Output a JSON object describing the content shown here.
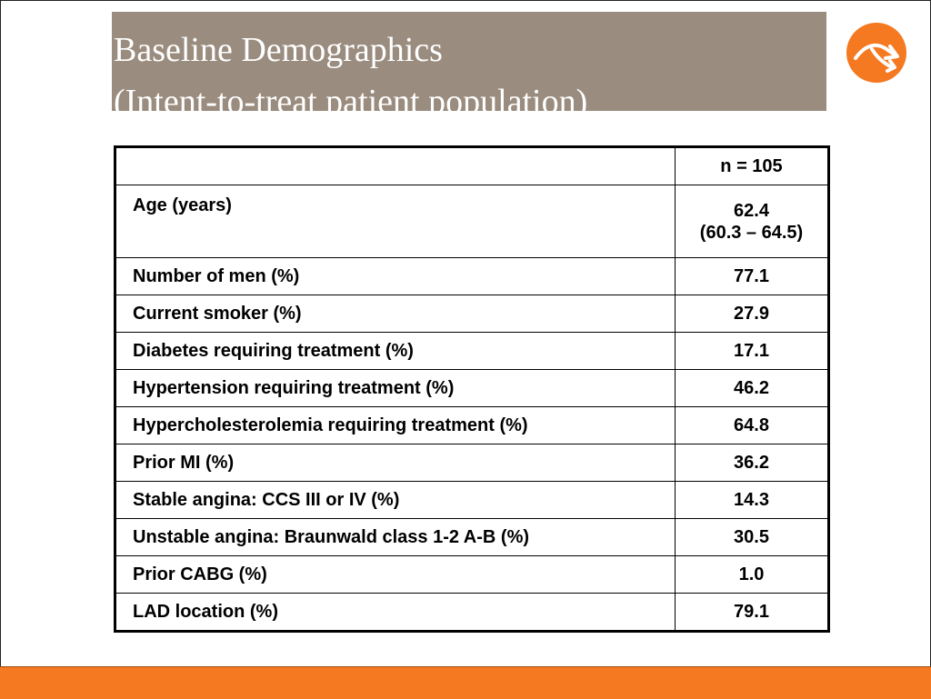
{
  "title": {
    "line1": "Baseline Demographics",
    "line2": "(Intent-to-treat patient population)"
  },
  "colors": {
    "title_bg": "#9a8c7e",
    "accent_orange": "#f47920"
  },
  "logo": {
    "icon": "forked-arrow-logo-icon"
  },
  "table": {
    "header": {
      "label": "",
      "value": "n = 105"
    },
    "rows": [
      {
        "label": "Age (years)",
        "value": "62.4",
        "value_sub": "(60.3 – 64.5)"
      },
      {
        "label": "Number of men (%)",
        "value": "77.1"
      },
      {
        "label": "Current smoker (%)",
        "value": "27.9"
      },
      {
        "label": "Diabetes requiring treatment (%)",
        "value": "17.1"
      },
      {
        "label": "Hypertension requiring treatment (%)",
        "value": "46.2"
      },
      {
        "label": "Hypercholesterolemia requiring treatment (%)",
        "value": "64.8"
      },
      {
        "label": "Prior MI (%)",
        "value": "36.2"
      },
      {
        "label": "Stable angina: CCS III or IV (%)",
        "value": "14.3"
      },
      {
        "label": "Unstable angina: Braunwald class 1-2 A-B (%)",
        "value": "30.5"
      },
      {
        "label": "Prior CABG (%)",
        "value": "1.0"
      },
      {
        "label": "LAD location (%)",
        "value": "79.1"
      }
    ]
  }
}
